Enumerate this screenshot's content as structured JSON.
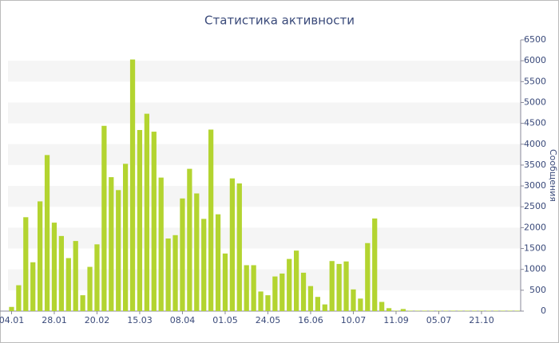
{
  "chart_data": {
    "type": "bar",
    "title": "Статистика активности",
    "y_label": "Сообщения",
    "categories": [
      "04.01",
      null,
      null,
      null,
      null,
      null,
      "28.01",
      null,
      null,
      null,
      null,
      null,
      "20.02",
      null,
      null,
      null,
      null,
      null,
      "15.03",
      null,
      null,
      null,
      null,
      null,
      "08.04",
      null,
      null,
      null,
      null,
      null,
      "01.05",
      null,
      null,
      null,
      null,
      null,
      "24.05",
      null,
      null,
      null,
      null,
      null,
      "16.06",
      null,
      null,
      null,
      null,
      null,
      "10.07",
      null,
      null,
      null,
      null,
      null,
      "11.09",
      null,
      null,
      null,
      null,
      null,
      "05.07",
      null,
      null,
      null,
      null,
      null,
      "21.10",
      null,
      null,
      null,
      null,
      null
    ],
    "values": [
      100,
      620,
      2250,
      1170,
      2630,
      3740,
      2120,
      1800,
      1270,
      1680,
      380,
      1060,
      1600,
      4440,
      3210,
      2900,
      3530,
      6030,
      4340,
      4730,
      4300,
      3200,
      1740,
      1820,
      2700,
      3410,
      2820,
      2210,
      4350,
      2320,
      1380,
      3180,
      3060,
      1100,
      1100,
      470,
      380,
      830,
      900,
      1250,
      1450,
      920,
      600,
      340,
      160,
      1200,
      1130,
      1190,
      520,
      300,
      1630,
      2220,
      220,
      70,
      10,
      50,
      10,
      10,
      10,
      10,
      10,
      10,
      10,
      10,
      10,
      10,
      10,
      10,
      10,
      10,
      10,
      10
    ],
    "color": "#b3d430",
    "ylim": [
      0,
      6500
    ],
    "yticks": [
      0,
      500,
      1000,
      1500,
      2000,
      2500,
      3000,
      3500,
      4000,
      4500,
      5000,
      5500,
      6000,
      6500
    ],
    "grid": true
  }
}
